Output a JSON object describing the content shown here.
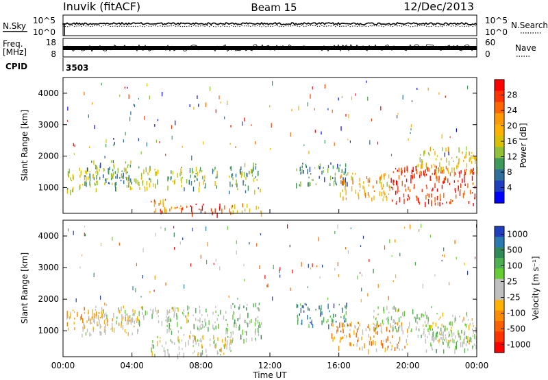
{
  "header": {
    "station": "Inuvik (fitACF)",
    "beam": "Beam 15",
    "date": "12/Dec/2013"
  },
  "top_panels": {
    "nsky_label": "N.Sky",
    "nsky_ticks": [
      "10^5",
      "10^0"
    ],
    "nsearch_label": "N.Search",
    "nsearch_ticks": [
      "10^5",
      "10^0"
    ],
    "freq_label_1": "Freq.",
    "freq_label_2": "[MHz]",
    "freq_ticks": [
      "18",
      "8"
    ],
    "nave_label": "Nave",
    "nave_ticks": [
      "60",
      "0"
    ],
    "cpid_label": "CPID",
    "cpid_value": "3503"
  },
  "power_colorbar": {
    "label": "Power [dB]",
    "ticks": [
      "28",
      "24",
      "20",
      "16",
      "12",
      "8",
      "4"
    ],
    "colors": [
      "#ff0000",
      "#ff3300",
      "#ff6600",
      "#ff9900",
      "#ffb300",
      "#d9c000",
      "#8fc23a",
      "#3f9a5a",
      "#2f6f9a",
      "#1f3fc0",
      "#0000ff"
    ]
  },
  "velocity_colorbar": {
    "label": "Velocity [m s⁻¹]",
    "ticks": [
      "1000",
      "500",
      "100",
      "25",
      "-25",
      "-100",
      "-500",
      "-1000"
    ],
    "colors": [
      "#1f3fbf",
      "#2a7ab0",
      "#2e8b57",
      "#4caf50",
      "#66cc33",
      "#c0c0c0",
      "#c0c0c0",
      "#ffb300",
      "#ff8c00",
      "#ff6000",
      "#ff3300",
      "#ff0000"
    ]
  },
  "axes": {
    "ylabel": "Slant Range [km]",
    "xlabel": "Time UT",
    "yticks": [
      "4000",
      "3000",
      "2000",
      "1000"
    ],
    "xticks": [
      "00:00",
      "04:00",
      "08:00",
      "12:00",
      "16:00",
      "20:00",
      "00:00"
    ]
  },
  "chart_data": [
    {
      "type": "heatmap",
      "title": "Power",
      "xlabel": "Time UT",
      "ylabel": "Slant Range [km]",
      "xlim_hours": [
        0,
        24
      ],
      "ylim_km": [
        180,
        4500
      ],
      "colorbar": "Power [dB]",
      "colorbar_range": [
        0,
        30
      ],
      "echo_regions": [
        {
          "t0": 0.2,
          "t1": 2.0,
          "r0": 900,
          "r1": 1700,
          "value": 14
        },
        {
          "t0": 1.0,
          "t1": 4.0,
          "r0": 1100,
          "r1": 1900,
          "value": 10
        },
        {
          "t0": 2.5,
          "t1": 5.5,
          "r0": 1000,
          "r1": 1700,
          "value": 13
        },
        {
          "t0": 5.0,
          "t1": 7.0,
          "r0": 200,
          "r1": 700,
          "value": 22
        },
        {
          "t0": 7.0,
          "t1": 9.5,
          "r0": 200,
          "r1": 500,
          "value": 27
        },
        {
          "t0": 6.0,
          "t1": 9.0,
          "r0": 1000,
          "r1": 1700,
          "value": 12
        },
        {
          "t0": 9.5,
          "t1": 11.5,
          "r0": 200,
          "r1": 500,
          "value": 20
        },
        {
          "t0": 9.5,
          "t1": 11.5,
          "r0": 900,
          "r1": 1800,
          "value": 11
        },
        {
          "t0": 13.5,
          "t1": 16.5,
          "r0": 1100,
          "r1": 1800,
          "value": 8
        },
        {
          "t0": 16.0,
          "t1": 19.0,
          "r0": 600,
          "r1": 1500,
          "value": 18
        },
        {
          "t0": 19.0,
          "t1": 24.0,
          "r0": 500,
          "r1": 1700,
          "value": 27
        },
        {
          "t0": 20.5,
          "t1": 24.0,
          "r0": 1500,
          "r1": 2300,
          "value": 16
        }
      ]
    },
    {
      "type": "heatmap",
      "title": "Velocity",
      "xlabel": "Time UT",
      "ylabel": "Slant Range [km]",
      "xlim_hours": [
        0,
        24
      ],
      "ylim_km": [
        180,
        4500
      ],
      "colorbar": "Velocity [m s⁻¹]",
      "colorbar_range": [
        -1000,
        1000
      ],
      "echo_regions": [
        {
          "t0": 0.2,
          "t1": 2.5,
          "r0": 1100,
          "r1": 1900,
          "value": -250
        },
        {
          "t0": 1.0,
          "t1": 4.5,
          "r0": 900,
          "r1": 1700,
          "value": -150
        },
        {
          "t0": 3.0,
          "t1": 6.5,
          "r0": 1300,
          "r1": 1800,
          "value": 120
        },
        {
          "t0": 5.0,
          "t1": 10.0,
          "r0": 250,
          "r1": 900,
          "value": 0
        },
        {
          "t0": 6.0,
          "t1": 9.5,
          "r0": 1000,
          "r1": 1800,
          "value": 150
        },
        {
          "t0": 9.5,
          "t1": 11.5,
          "r0": 700,
          "r1": 1900,
          "value": 300
        },
        {
          "t0": 13.5,
          "t1": 16.5,
          "r0": 1200,
          "r1": 1900,
          "value": 600
        },
        {
          "t0": 15.5,
          "t1": 20.0,
          "r0": 400,
          "r1": 1300,
          "value": -350
        },
        {
          "t0": 18.0,
          "t1": 21.5,
          "r0": 1000,
          "r1": 1800,
          "value": 150
        },
        {
          "t0": 20.5,
          "t1": 24.0,
          "r0": 700,
          "r1": 1600,
          "value": 0
        },
        {
          "t0": 21.0,
          "t1": 24.0,
          "r0": 400,
          "r1": 1100,
          "value": 200
        }
      ]
    }
  ]
}
